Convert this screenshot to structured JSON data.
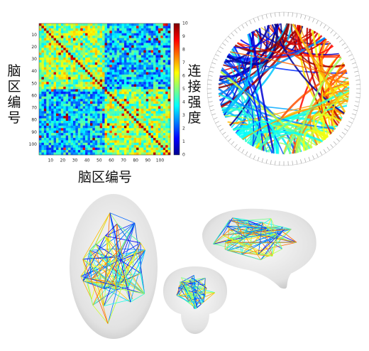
{
  "heatmap": {
    "y_label": "脑区编号",
    "x_label": "脑区编号",
    "range": [
      0.5,
      108.5
    ],
    "xticks": [
      10,
      20,
      30,
      40,
      50,
      60,
      70,
      80,
      90,
      100
    ],
    "yticks": [
      10,
      20,
      30,
      40,
      50,
      60,
      70,
      80,
      90,
      100
    ],
    "colorbar": {
      "label": "连接强度",
      "ticks": [
        0,
        1,
        2,
        3,
        4,
        5,
        6,
        7,
        8,
        9,
        10
      ]
    }
  }
}
